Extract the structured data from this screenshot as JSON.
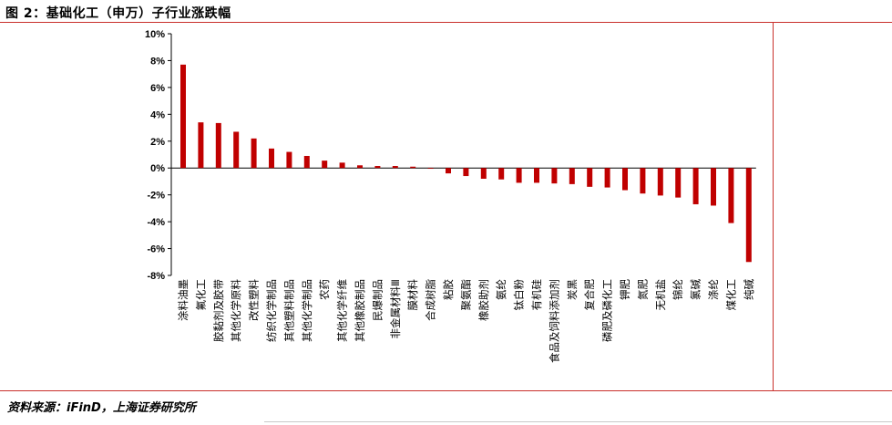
{
  "header": {
    "title": "图 2：基础化工（申万）子行业涨跌幅"
  },
  "footer": {
    "source": "资料来源：iFinD，上海证券研究所"
  },
  "colors": {
    "bar": "#c00000",
    "rule": "#c9302c"
  },
  "chart_data": {
    "type": "bar",
    "title": "",
    "xlabel": "",
    "ylabel": "",
    "ylim": [
      -8,
      10
    ],
    "yticks": [
      10,
      8,
      6,
      4,
      2,
      0,
      -2,
      -4,
      -6,
      -8
    ],
    "ytick_labels": [
      "10%",
      "8%",
      "6%",
      "4%",
      "2%",
      "0%",
      "-2%",
      "-4%",
      "-6%",
      "-8%"
    ],
    "grid": false,
    "categories": [
      "涂料油墨",
      "氟化工",
      "胶黏剂及胶带",
      "其他化学原料",
      "改性塑料",
      "纺织化学制品",
      "其他塑料制品",
      "其他化学制品",
      "农药",
      "其他化学纤维",
      "其他橡胶制品",
      "民爆制品",
      "非金属材料Ⅲ",
      "膜材料",
      "合成树脂",
      "粘胶",
      "聚氨酯",
      "橡胶助剂",
      "氨纶",
      "钛白粉",
      "有机硅",
      "食品及饲料添加剂",
      "炭黑",
      "复合肥",
      "磷肥及磷化工",
      "钾肥",
      "氮肥",
      "无机盐",
      "锦纶",
      "氯碱",
      "涤纶",
      "煤化工",
      "纯碱"
    ],
    "values": [
      7.7,
      3.4,
      3.35,
      2.7,
      2.2,
      1.45,
      1.2,
      0.9,
      0.55,
      0.4,
      0.2,
      0.15,
      0.15,
      0.1,
      -0.05,
      -0.4,
      -0.6,
      -0.8,
      -0.85,
      -1.1,
      -1.1,
      -1.15,
      -1.2,
      -1.4,
      -1.45,
      -1.65,
      -1.9,
      -2.05,
      -2.2,
      -2.7,
      -2.8,
      -4.1,
      -7.0
    ]
  }
}
